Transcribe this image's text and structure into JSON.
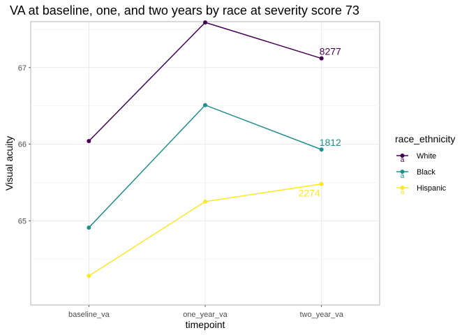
{
  "chart_data": {
    "type": "line",
    "title": "VA at baseline, one, and two years by race at severity score 73",
    "xlabel": "timepoint",
    "ylabel": "Visual acuity",
    "categories": [
      "baseline_va",
      "one_year_va",
      "two_year_va"
    ],
    "ylim": [
      63.9,
      67.6
    ],
    "yticks": [
      65,
      66,
      67
    ],
    "grid": true,
    "legend": {
      "title": "race_ethnicity",
      "position": "right"
    },
    "series": [
      {
        "name": "White",
        "values": [
          66.04,
          67.59,
          67.12
        ],
        "color": "#440154",
        "end_label": "8277"
      },
      {
        "name": "Black",
        "values": [
          64.91,
          66.51,
          65.93
        ],
        "color": "#21908C",
        "end_label": "1812"
      },
      {
        "name": "Hispanic",
        "values": [
          64.28,
          65.25,
          65.48
        ],
        "color": "#FDE725",
        "end_label": "2274"
      }
    ]
  }
}
